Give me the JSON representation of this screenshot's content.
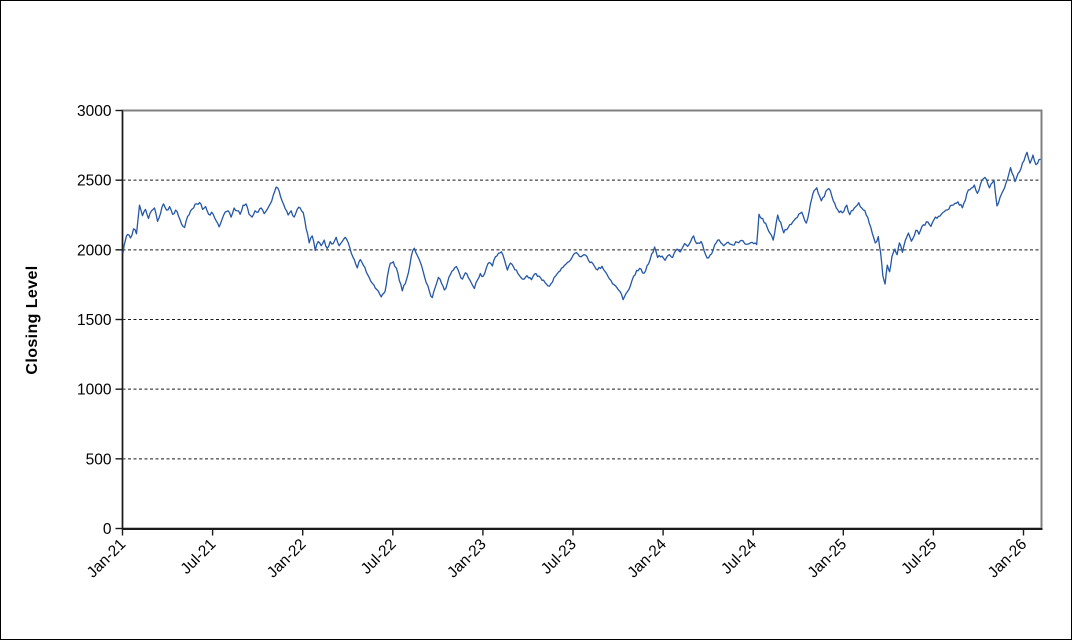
{
  "chart_data": {
    "type": "line",
    "title": "",
    "xlabel": "",
    "ylabel": "Closing Level",
    "ylim": [
      0,
      3000
    ],
    "yticks": [
      0,
      500,
      1000,
      1500,
      2000,
      2500,
      3000
    ],
    "xticks": [
      "Jan-21",
      "Jul-21",
      "Jan-22",
      "Jul-22",
      "Jan-23",
      "Jul-23",
      "Jan-24",
      "Jul-24",
      "Jan-25",
      "Jul-25",
      "Jan-26"
    ],
    "x_tick_interval_months": 6,
    "grid": "horizontal-dashed",
    "legend": "none",
    "line_color": "#2457A6",
    "axis_color": "#1a1a1a",
    "plot_border_color": "#808080",
    "series": [
      {
        "name": "Closing Level",
        "x_unit": "months since Jan-2021",
        "points": [
          [
            0.0,
            1975
          ],
          [
            0.15,
            2065
          ],
          [
            0.3,
            2110
          ],
          [
            0.5,
            2085
          ],
          [
            0.7,
            2150
          ],
          [
            0.9,
            2115
          ],
          [
            1.1,
            2320
          ],
          [
            1.3,
            2245
          ],
          [
            1.5,
            2290
          ],
          [
            1.7,
            2225
          ],
          [
            1.9,
            2280
          ],
          [
            2.1,
            2300
          ],
          [
            2.3,
            2205
          ],
          [
            2.5,
            2260
          ],
          [
            2.7,
            2330
          ],
          [
            2.9,
            2285
          ],
          [
            3.1,
            2310
          ],
          [
            3.3,
            2255
          ],
          [
            3.5,
            2285
          ],
          [
            3.7,
            2240
          ],
          [
            3.9,
            2185
          ],
          [
            4.1,
            2160
          ],
          [
            4.3,
            2240
          ],
          [
            4.5,
            2280
          ],
          [
            4.7,
            2300
          ],
          [
            4.9,
            2330
          ],
          [
            5.1,
            2340
          ],
          [
            5.3,
            2290
          ],
          [
            5.5,
            2310
          ],
          [
            5.7,
            2255
          ],
          [
            5.9,
            2270
          ],
          [
            6.1,
            2230
          ],
          [
            6.4,
            2165
          ],
          [
            6.6,
            2220
          ],
          [
            6.8,
            2270
          ],
          [
            7.0,
            2280
          ],
          [
            7.2,
            2235
          ],
          [
            7.4,
            2300
          ],
          [
            7.6,
            2280
          ],
          [
            7.8,
            2255
          ],
          [
            8.0,
            2320
          ],
          [
            8.2,
            2330
          ],
          [
            8.4,
            2255
          ],
          [
            8.6,
            2235
          ],
          [
            8.8,
            2280
          ],
          [
            9.0,
            2270
          ],
          [
            9.2,
            2300
          ],
          [
            9.4,
            2260
          ],
          [
            9.6,
            2290
          ],
          [
            9.8,
            2330
          ],
          [
            10.0,
            2390
          ],
          [
            10.2,
            2450
          ],
          [
            10.4,
            2420
          ],
          [
            10.6,
            2350
          ],
          [
            10.8,
            2295
          ],
          [
            11.0,
            2250
          ],
          [
            11.2,
            2280
          ],
          [
            11.4,
            2235
          ],
          [
            11.6,
            2290
          ],
          [
            11.8,
            2300
          ],
          [
            12.0,
            2268
          ],
          [
            12.2,
            2150
          ],
          [
            12.4,
            2050
          ],
          [
            12.6,
            2100
          ],
          [
            12.8,
            1995
          ],
          [
            13.0,
            2060
          ],
          [
            13.2,
            2030
          ],
          [
            13.4,
            2070
          ],
          [
            13.6,
            2010
          ],
          [
            13.8,
            2060
          ],
          [
            14.0,
            2045
          ],
          [
            14.2,
            2090
          ],
          [
            14.4,
            2030
          ],
          [
            14.6,
            2060
          ],
          [
            14.8,
            2090
          ],
          [
            15.0,
            2050
          ],
          [
            15.3,
            1950
          ],
          [
            15.6,
            1870
          ],
          [
            15.8,
            1930
          ],
          [
            16.0,
            1890
          ],
          [
            16.3,
            1820
          ],
          [
            16.6,
            1760
          ],
          [
            16.9,
            1715
          ],
          [
            17.2,
            1662
          ],
          [
            17.45,
            1700
          ],
          [
            17.6,
            1805
          ],
          [
            17.8,
            1905
          ],
          [
            18.0,
            1915
          ],
          [
            18.2,
            1870
          ],
          [
            18.4,
            1780
          ],
          [
            18.6,
            1705
          ],
          [
            18.8,
            1758
          ],
          [
            19.0,
            1832
          ],
          [
            19.2,
            1955
          ],
          [
            19.4,
            2012
          ],
          [
            19.6,
            1960
          ],
          [
            19.8,
            1912
          ],
          [
            20.0,
            1840
          ],
          [
            20.2,
            1762
          ],
          [
            20.4,
            1705
          ],
          [
            20.6,
            1657
          ],
          [
            20.8,
            1732
          ],
          [
            21.0,
            1802
          ],
          [
            21.2,
            1762
          ],
          [
            21.4,
            1712
          ],
          [
            21.6,
            1762
          ],
          [
            21.8,
            1822
          ],
          [
            22.0,
            1855
          ],
          [
            22.2,
            1880
          ],
          [
            22.4,
            1830
          ],
          [
            22.6,
            1790
          ],
          [
            22.8,
            1835
          ],
          [
            23.0,
            1800
          ],
          [
            23.2,
            1762
          ],
          [
            23.4,
            1722
          ],
          [
            23.6,
            1782
          ],
          [
            23.8,
            1830
          ],
          [
            24.0,
            1812
          ],
          [
            24.2,
            1872
          ],
          [
            24.4,
            1910
          ],
          [
            24.6,
            1885
          ],
          [
            24.8,
            1950
          ],
          [
            25.0,
            1975
          ],
          [
            25.2,
            1986
          ],
          [
            25.4,
            1930
          ],
          [
            25.6,
            1855
          ],
          [
            25.8,
            1905
          ],
          [
            26.0,
            1880
          ],
          [
            26.3,
            1830
          ],
          [
            26.6,
            1790
          ],
          [
            26.9,
            1815
          ],
          [
            27.2,
            1786
          ],
          [
            27.5,
            1830
          ],
          [
            27.8,
            1800
          ],
          [
            28.1,
            1765
          ],
          [
            28.4,
            1740
          ],
          [
            28.7,
            1800
          ],
          [
            29.0,
            1840
          ],
          [
            29.3,
            1875
          ],
          [
            29.6,
            1910
          ],
          [
            29.9,
            1945
          ],
          [
            30.2,
            1980
          ],
          [
            30.5,
            1950
          ],
          [
            30.8,
            1962
          ],
          [
            31.0,
            1925
          ],
          [
            31.3,
            1900
          ],
          [
            31.6,
            1855
          ],
          [
            31.9,
            1882
          ],
          [
            32.2,
            1830
          ],
          [
            32.5,
            1780
          ],
          [
            32.8,
            1742
          ],
          [
            33.1,
            1700
          ],
          [
            33.3,
            1642
          ],
          [
            33.6,
            1702
          ],
          [
            33.9,
            1782
          ],
          [
            34.2,
            1852
          ],
          [
            34.5,
            1862
          ],
          [
            34.7,
            1832
          ],
          [
            35.0,
            1900
          ],
          [
            35.2,
            1970
          ],
          [
            35.4,
            2020
          ],
          [
            35.6,
            1945
          ],
          [
            35.9,
            1955
          ],
          [
            36.1,
            1925
          ],
          [
            36.4,
            1965
          ],
          [
            36.6,
            1945
          ],
          [
            36.9,
            2005
          ],
          [
            37.1,
            1985
          ],
          [
            37.4,
            2045
          ],
          [
            37.6,
            2025
          ],
          [
            37.9,
            2085
          ],
          [
            38.0,
            2100
          ],
          [
            38.2,
            2045
          ],
          [
            38.5,
            2060
          ],
          [
            38.8,
            1965
          ],
          [
            39.0,
            1943
          ],
          [
            39.3,
            2000
          ],
          [
            39.5,
            2050
          ],
          [
            39.7,
            2071
          ],
          [
            40.0,
            2030
          ],
          [
            40.3,
            2055
          ],
          [
            40.6,
            2035
          ],
          [
            40.9,
            2055
          ],
          [
            41.2,
            2068
          ],
          [
            41.5,
            2040
          ],
          [
            41.8,
            2052
          ],
          [
            42.0,
            2045
          ],
          [
            42.2,
            2038
          ],
          [
            42.35,
            2255
          ],
          [
            42.6,
            2225
          ],
          [
            42.9,
            2160
          ],
          [
            43.3,
            2070
          ],
          [
            43.6,
            2250
          ],
          [
            44.0,
            2122
          ],
          [
            44.3,
            2160
          ],
          [
            44.6,
            2200
          ],
          [
            44.9,
            2232
          ],
          [
            45.2,
            2270
          ],
          [
            45.5,
            2192
          ],
          [
            45.7,
            2280
          ],
          [
            45.95,
            2405
          ],
          [
            46.2,
            2445
          ],
          [
            46.5,
            2352
          ],
          [
            46.7,
            2382
          ],
          [
            46.9,
            2432
          ],
          [
            47.1,
            2425
          ],
          [
            47.3,
            2352
          ],
          [
            47.5,
            2300
          ],
          [
            47.7,
            2268
          ],
          [
            48.0,
            2275
          ],
          [
            48.2,
            2320
          ],
          [
            48.4,
            2252
          ],
          [
            48.6,
            2282
          ],
          [
            48.8,
            2310
          ],
          [
            49.0,
            2338
          ],
          [
            49.2,
            2300
          ],
          [
            49.4,
            2282
          ],
          [
            49.6,
            2232
          ],
          [
            49.8,
            2162
          ],
          [
            50.1,
            2050
          ],
          [
            50.3,
            2095
          ],
          [
            50.45,
            1980
          ],
          [
            50.6,
            1815
          ],
          [
            50.75,
            1755
          ],
          [
            50.9,
            1890
          ],
          [
            51.05,
            1842
          ],
          [
            51.2,
            1950
          ],
          [
            51.4,
            2005
          ],
          [
            51.55,
            1965
          ],
          [
            51.7,
            2050
          ],
          [
            51.9,
            1982
          ],
          [
            52.1,
            2070
          ],
          [
            52.3,
            2120
          ],
          [
            52.5,
            2062
          ],
          [
            52.8,
            2140
          ],
          [
            53.0,
            2112
          ],
          [
            53.3,
            2180
          ],
          [
            53.6,
            2200
          ],
          [
            53.8,
            2168
          ],
          [
            54.1,
            2235
          ],
          [
            54.4,
            2242
          ],
          [
            54.8,
            2285
          ],
          [
            55.2,
            2320
          ],
          [
            55.6,
            2345
          ],
          [
            55.9,
            2302
          ],
          [
            56.3,
            2430
          ],
          [
            56.7,
            2465
          ],
          [
            56.9,
            2405
          ],
          [
            57.2,
            2500
          ],
          [
            57.4,
            2520
          ],
          [
            57.7,
            2445
          ],
          [
            58.0,
            2500
          ],
          [
            58.2,
            2315
          ],
          [
            58.5,
            2400
          ],
          [
            58.8,
            2480
          ],
          [
            59.1,
            2590
          ],
          [
            59.4,
            2490
          ],
          [
            59.7,
            2560
          ],
          [
            60.0,
            2640
          ],
          [
            60.2,
            2700
          ],
          [
            60.4,
            2622
          ],
          [
            60.6,
            2680
          ],
          [
            60.8,
            2612
          ],
          [
            61.1,
            2650
          ]
        ]
      }
    ]
  }
}
